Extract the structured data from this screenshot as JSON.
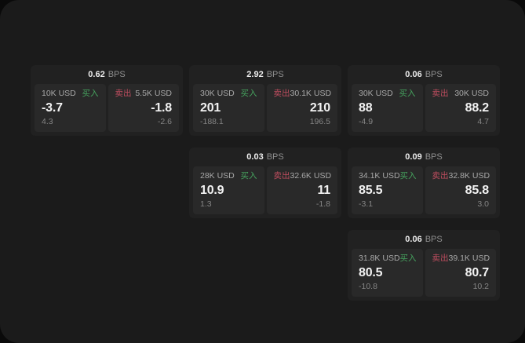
{
  "page": {
    "background": "#1b1b1b",
    "backdrop": "#0a0a0a"
  },
  "labels": {
    "buy": "买入",
    "sell": "卖出",
    "bps_unit": "BPS"
  },
  "colors": {
    "buy_green": "#46a35e",
    "sell_red": "#bf4d5f",
    "card_bg": "#212121",
    "panel_bg": "#292929",
    "value_white": "#f2f2f2",
    "label_gray": "#a8a8a8",
    "delta_gray": "#858585"
  },
  "cards": [
    {
      "col": 1,
      "row": 1,
      "bps": "0.62",
      "buy": {
        "amount": "10K USD",
        "price": "-3.7",
        "delta": "4.3"
      },
      "sell": {
        "amount": "5.5K USD",
        "price": "-1.8",
        "delta": "-2.6"
      }
    },
    {
      "col": 2,
      "row": 1,
      "bps": "2.92",
      "buy": {
        "amount": "30K USD",
        "price": "201",
        "delta": "-188.1"
      },
      "sell": {
        "amount": "30.1K USD",
        "price": "210",
        "delta": "196.5"
      }
    },
    {
      "col": 3,
      "row": 1,
      "bps": "0.06",
      "buy": {
        "amount": "30K USD",
        "price": "88",
        "delta": "-4.9"
      },
      "sell": {
        "amount": "30K USD",
        "price": "88.2",
        "delta": "4.7"
      }
    },
    {
      "col": 2,
      "row": 2,
      "bps": "0.03",
      "buy": {
        "amount": "28K USD",
        "price": "10.9",
        "delta": "1.3"
      },
      "sell": {
        "amount": "32.6K USD",
        "price": "11",
        "delta": "-1.8"
      }
    },
    {
      "col": 3,
      "row": 2,
      "bps": "0.09",
      "buy": {
        "amount": "34.1K USD",
        "price": "85.5",
        "delta": "-3.1"
      },
      "sell": {
        "amount": "32.8K USD",
        "price": "85.8",
        "delta": "3.0"
      }
    },
    {
      "col": 3,
      "row": 3,
      "bps": "0.06",
      "buy": {
        "amount": "31.8K USD",
        "price": "80.5",
        "delta": "-10.8"
      },
      "sell": {
        "amount": "39.1K USD",
        "price": "80.7",
        "delta": "10.2"
      }
    }
  ]
}
